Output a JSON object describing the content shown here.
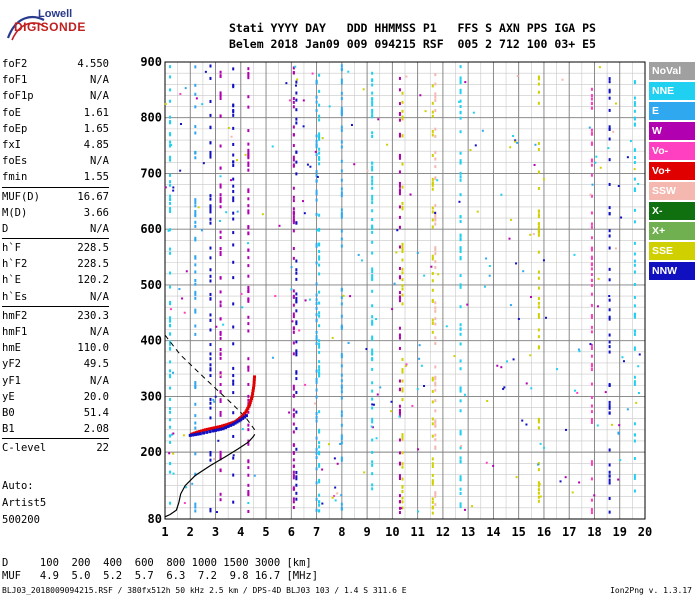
{
  "logo": {
    "line1": "Lowell",
    "line2": "DIGISONDE"
  },
  "header": {
    "row1": "Stati YYYY DAY   DDD HHMMSS P1   FFS S AXN PPS IGA PS",
    "row2": "Belem 2018 Jan09 009 094215 RSF  005 2 712 100 03+ E5"
  },
  "params": [
    {
      "name": "foF2",
      "value": "4.550"
    },
    {
      "name": "foF1",
      "value": "N/A"
    },
    {
      "name": "foF1p",
      "value": "N/A"
    },
    {
      "name": "foE",
      "value": "1.61"
    },
    {
      "name": "foEp",
      "value": "1.65"
    },
    {
      "name": "fxI",
      "value": "4.85"
    },
    {
      "name": "foEs",
      "value": "N/A"
    },
    {
      "name": "fmin",
      "value": "1.55"
    },
    {
      "name": "MUF(D)",
      "value": "16.67"
    },
    {
      "name": "M(D)",
      "value": "3.66"
    },
    {
      "name": "D",
      "value": "N/A"
    },
    {
      "name": "h`F",
      "value": "228.5"
    },
    {
      "name": "h`F2",
      "value": "228.5"
    },
    {
      "name": "h`E",
      "value": "120.2"
    },
    {
      "name": "h`Es",
      "value": "N/A"
    },
    {
      "name": "hmF2",
      "value": "230.3"
    },
    {
      "name": "hmF1",
      "value": "N/A"
    },
    {
      "name": "hmE",
      "value": "110.0"
    },
    {
      "name": "yF2",
      "value": "49.5"
    },
    {
      "name": "yF1",
      "value": "N/A"
    },
    {
      "name": "yE",
      "value": "20.0"
    },
    {
      "name": "B0",
      "value": "51.4"
    },
    {
      "name": "B1",
      "value": "2.08"
    },
    {
      "name": "C-level",
      "value": "22"
    }
  ],
  "status": {
    "line1": "Auto:",
    "line2": "Artist5",
    "line3": "500200"
  },
  "legend": [
    {
      "label": "NoVal",
      "color": "#a0a0a0"
    },
    {
      "label": "NNE",
      "color": "#20d0f0"
    },
    {
      "label": "E",
      "color": "#30a8f0"
    },
    {
      "label": "W",
      "color": "#b000b0"
    },
    {
      "label": "Vo-",
      "color": "#ff40c0"
    },
    {
      "label": "Vo+",
      "color": "#e00000"
    },
    {
      "label": "SSW",
      "color": "#f4b8b0"
    },
    {
      "label": "X-",
      "color": "#107010"
    },
    {
      "label": "X+",
      "color": "#70b050"
    },
    {
      "label": "SSE",
      "color": "#d0d000"
    },
    {
      "label": "NNW",
      "color": "#1010c0"
    }
  ],
  "dmuf": {
    "row1": "D     100  200  400  600  800 1000 1500 3000 [km]",
    "row2": "MUF   4.9  5.0  5.2  5.7  6.3  7.2  9.8 16.7 [MHz]"
  },
  "footer": "BLJ03_2018009094215.RSF / 380fx512h 50 kHz 2.5 km / DPS-4D BLJ03 103 / 1.4 S 311.6 E",
  "version": "Ion2Png v. 1.3.17",
  "chart_data": {
    "type": "scatter",
    "xlim": [
      1,
      20
    ],
    "ylim": [
      80,
      900
    ],
    "x_ticks": [
      1,
      2,
      3,
      4,
      5,
      6,
      7,
      8,
      9,
      10,
      11,
      12,
      13,
      14,
      15,
      16,
      17,
      18,
      19,
      20
    ],
    "y_ticks": [
      80,
      200,
      300,
      400,
      500,
      600,
      700,
      800,
      900
    ],
    "grid": true,
    "traces": [
      {
        "name": "O-trace F2",
        "color": "#e00000",
        "points": [
          [
            2.05,
            232
          ],
          [
            2.3,
            236
          ],
          [
            2.6,
            240
          ],
          [
            2.9,
            243
          ],
          [
            3.2,
            246
          ],
          [
            3.5,
            250
          ],
          [
            3.8,
            255
          ],
          [
            4.0,
            262
          ],
          [
            4.2,
            272
          ],
          [
            4.35,
            285
          ],
          [
            4.45,
            300
          ],
          [
            4.52,
            320
          ],
          [
            4.55,
            340
          ]
        ]
      },
      {
        "name": "F2 ext trace",
        "color": "#1010c0",
        "points": [
          [
            2.0,
            230
          ],
          [
            2.4,
            233
          ],
          [
            2.9,
            238
          ],
          [
            3.3,
            242
          ],
          [
            3.7,
            250
          ],
          [
            4.0,
            258
          ],
          [
            4.3,
            268
          ]
        ]
      }
    ],
    "profile_solid": [
      [
        1.0,
        84
      ],
      [
        1.2,
        88
      ],
      [
        1.45,
        96
      ],
      [
        1.55,
        110
      ],
      [
        1.62,
        125
      ],
      [
        1.8,
        140
      ],
      [
        2.2,
        158
      ],
      [
        2.8,
        176
      ],
      [
        3.4,
        192
      ],
      [
        3.9,
        206
      ],
      [
        4.3,
        218
      ],
      [
        4.5,
        228
      ],
      [
        4.55,
        232
      ]
    ],
    "profile_dashed": [
      [
        1.0,
        410
      ],
      [
        1.6,
        375
      ],
      [
        2.4,
        340
      ],
      [
        3.1,
        310
      ],
      [
        3.7,
        285
      ],
      [
        4.2,
        262
      ],
      [
        4.55,
        240
      ]
    ],
    "columns": [
      {
        "x": 1.2,
        "color": "#20d0f0"
      },
      {
        "x": 2.2,
        "color": "#30a8f0"
      },
      {
        "x": 2.8,
        "color": "#1010c0"
      },
      {
        "x": 3.2,
        "color": "#b000b0"
      },
      {
        "x": 3.7,
        "color": "#1010c0"
      },
      {
        "x": 4.3,
        "color": "#b000b0"
      },
      {
        "x": 6.1,
        "color": "#b000b0"
      },
      {
        "x": 6.2,
        "color": "#1010c0"
      },
      {
        "x": 7.0,
        "color": "#30a8f0"
      },
      {
        "x": 7.1,
        "color": "#20d0f0"
      },
      {
        "x": 8.0,
        "color": "#30a8f0"
      },
      {
        "x": 9.2,
        "color": "#20d0f0"
      },
      {
        "x": 10.3,
        "color": "#b000b0"
      },
      {
        "x": 10.4,
        "color": "#d0d000"
      },
      {
        "x": 11.6,
        "color": "#d0d000"
      },
      {
        "x": 11.7,
        "color": "#f4b8b0"
      },
      {
        "x": 12.7,
        "color": "#20d0f0"
      },
      {
        "x": 15.8,
        "color": "#d0d000"
      },
      {
        "x": 17.9,
        "color": "#ff40c0"
      },
      {
        "x": 18.6,
        "color": "#1010c0"
      },
      {
        "x": 19.6,
        "color": "#20d0f0"
      }
    ]
  }
}
